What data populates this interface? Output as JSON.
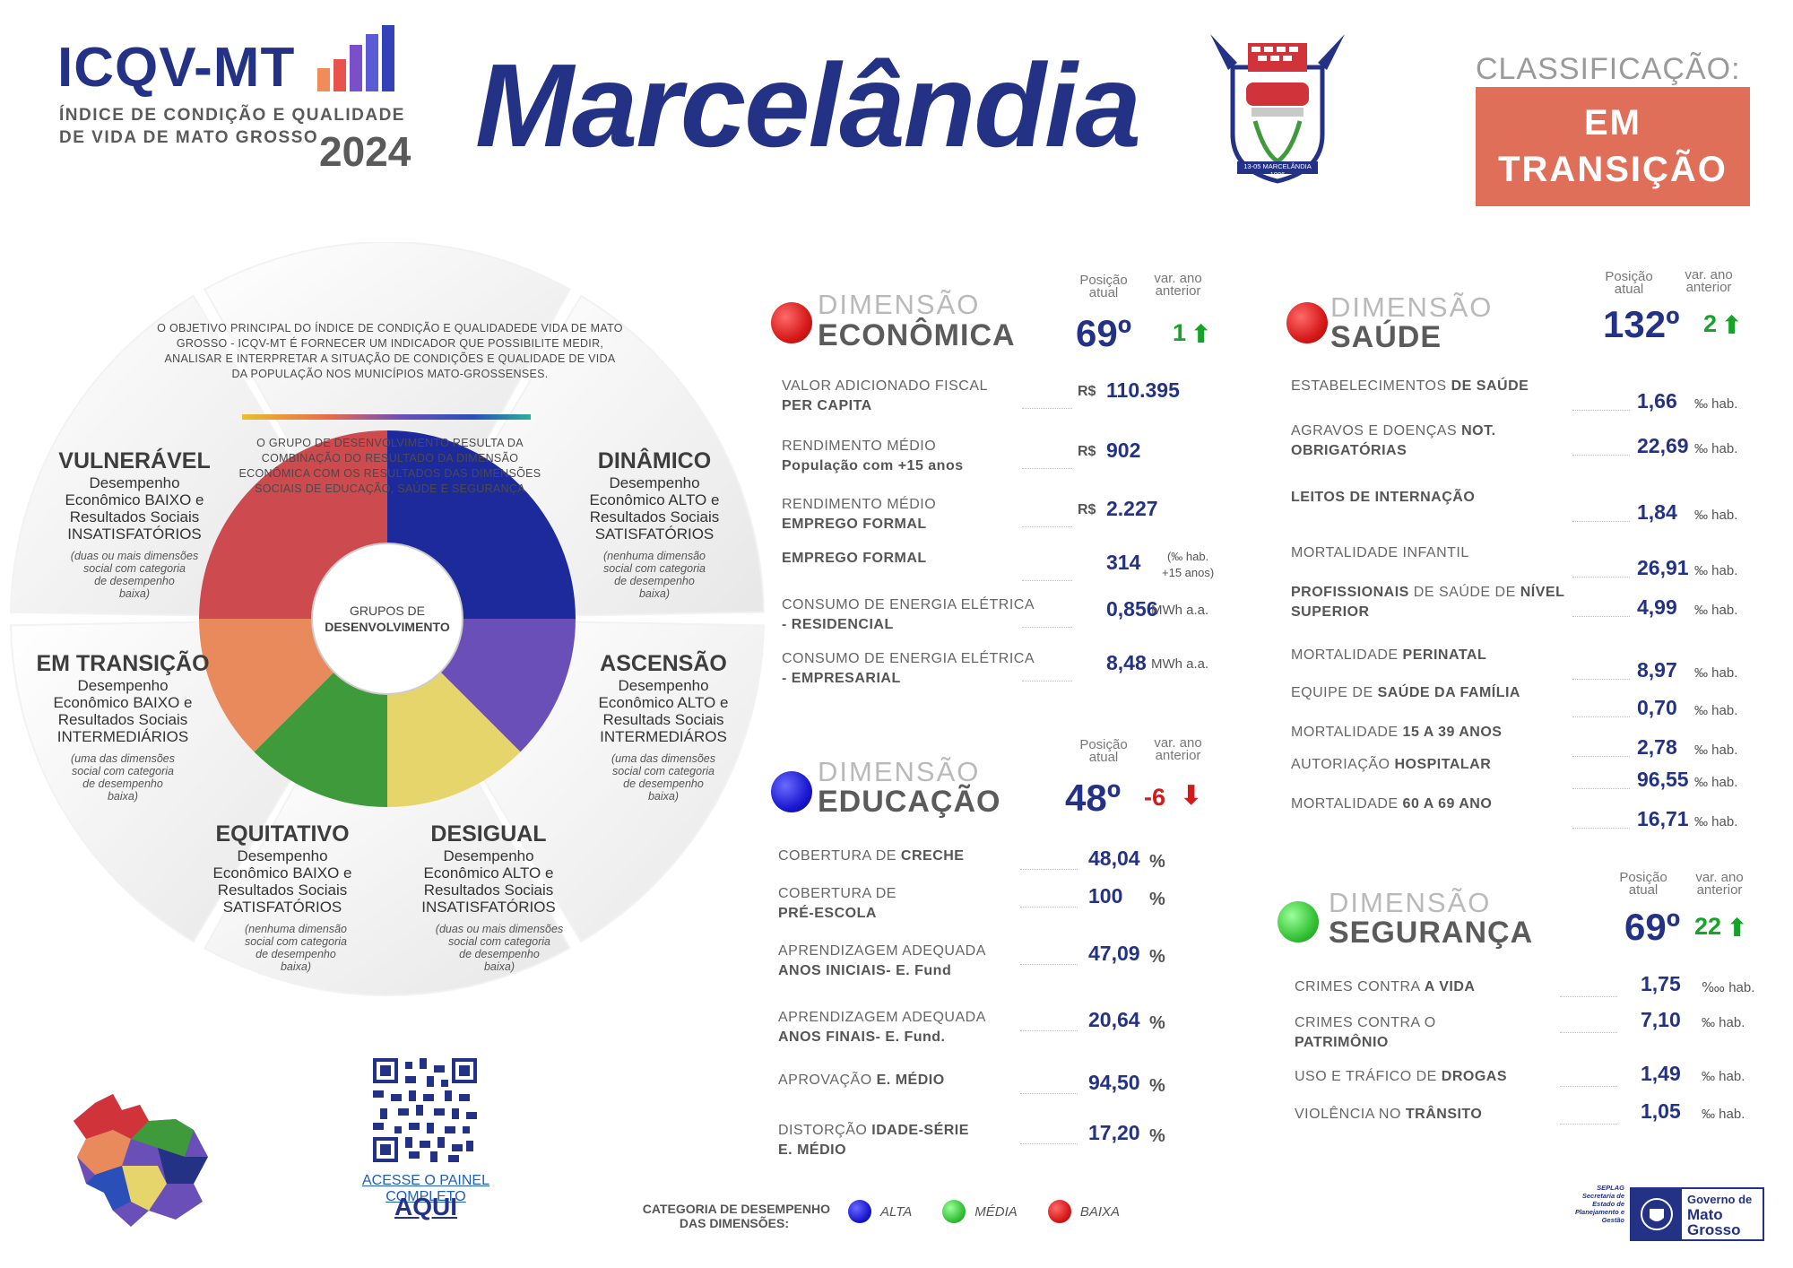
{
  "header": {
    "brand_title": "ICQV-MT",
    "brand_subtitle": "ÍNDICE DE CONDIÇÃO E QUALIDADE DE VIDA DE MATO GROSSO",
    "year": "2024",
    "city": "Marcelândia",
    "crest_caption": "13-05 MARCELÂNDIA 1986",
    "classification_label": "CLASSIFICAÇÃO:",
    "classification_value_line1": "EM",
    "classification_value_line2": "TRANSIÇÃO"
  },
  "wheel": {
    "objective_text": "O OBJETIVO PRINCIPAL DO ÍNDICE DE CONDIÇÃO E QUALIDADEDE VIDA DE MATO GROSSO - ICQV-MT É FORNECER UM INDICADOR QUE POSSIBILITE MEDIR, ANALISAR E INTERPRETAR A SITUAÇÃO DE CONDIÇÕES E QUALIDADE DE VIDA DA POPULAÇÃO NOS MUNICÍPIOS MATO-GROSSENSES.",
    "group_text": "O GRUPO DE DESENVOLVIMENTO RESULTA DA COMBINAÇÃO DO RESULTADO DA DIMENSÃO ECONÔMICA COM OS RESULTADOS DAS DIMENSÕES SOCIAIS DE EDUCAÇÃO, SAÚDE E SEGURANÇA",
    "center_line1": "GRUPOS DE",
    "center_line2": "DESENVOLVIMENTO",
    "colors": {
      "vulneravel": "#cd4a4e",
      "dinamico": "#1d2a9c",
      "ascensao": "#6b4fb8",
      "desigual": "#e6d56b",
      "equitativo": "#3f9a3c",
      "transicao": "#e98a5c"
    },
    "groups": {
      "vulneravel": {
        "title": "VULNERÁVEL",
        "desc": [
          "Desempenho",
          "Econômico BAIXO e",
          "Resultados Sociais",
          "INSATISFATÓRIOS"
        ],
        "note": [
          "(duas ou mais dimensões",
          "social com categoria",
          "de desempenho",
          "baixa)"
        ]
      },
      "dinamico": {
        "title": "DINÂMICO",
        "desc": [
          "Desempenho",
          "Econômico ALTO e",
          "Resultados Sociais",
          "SATISFATÓRIOS"
        ],
        "note": [
          "(nenhuma dimensão",
          "social com categoria",
          "de desempenho",
          "baixa)"
        ]
      },
      "transicao": {
        "title": "EM TRANSIÇÃO",
        "desc": [
          "Desempenho",
          "Econômico BAIXO e",
          "Resultados Sociais",
          "INTERMEDIÁRIOS"
        ],
        "note": [
          "(uma das dimensões",
          "social com categoria",
          "de desempenho",
          "baixa)"
        ]
      },
      "ascensao": {
        "title": "ASCENSÃO",
        "desc": [
          "Desempenho",
          "Econômico ALTO e",
          "Resultads Sociais",
          "INTERMEDIÁROS"
        ],
        "note": [
          "(uma das dimensões",
          "social com categoria",
          "de desempenho",
          "baixa)"
        ]
      },
      "equitativo": {
        "title": "EQUITATIVO",
        "desc": [
          "Desempenho",
          "Econômico BAIXO e",
          "Resultados Sociais",
          "SATISFATÓRIOS"
        ],
        "note": [
          "(nenhuma dimensão",
          "social com categoria",
          "de desempenho",
          "baixa)"
        ]
      },
      "desigual": {
        "title": "DESIGUAL",
        "desc": [
          "Desempenho",
          "Econômico ALTO e",
          "Resultados Sociais",
          "INSATISFATÓRIOS"
        ],
        "note": [
          "(duas ou mais dimensões",
          "social com categoria",
          "de desempenho",
          "baixa)"
        ]
      }
    }
  },
  "labels": {
    "dimensao": "DIMENSÃO",
    "posicao_l1": "Posição",
    "posicao_l2": "atual",
    "var_l1": "var. ano",
    "var_l2": "anterior"
  },
  "economica": {
    "name": "ECONÔMICA",
    "dot_color": "#e02020",
    "position": "69º",
    "variation": "1",
    "variation_dir": "up",
    "indicators": [
      {
        "l1": "VALOR ADICIONADO FISCAL",
        "l2b": "PER CAPITA",
        "prefix": "R$",
        "value": "110.395",
        "unit": ""
      },
      {
        "l1": "RENDIMENTO MÉDIO",
        "l2b": "População com +15 anos",
        "prefix": "R$",
        "value": "902",
        "unit": ""
      },
      {
        "l1": "RENDIMENTO MÉDIO",
        "l2b": "EMPREGO FORMAL",
        "prefix": "R$",
        "value": "2.227",
        "unit": ""
      },
      {
        "l1b": "EMPREGO FORMAL",
        "value": "314",
        "unit_l1": "(‰ hab.",
        "unit_l2": "+15 anos)"
      },
      {
        "l1": "CONSUMO DE ENERGIA ELÉTRICA",
        "l2": "- ",
        "l2b": "RESIDENCIAL",
        "value": "0,856",
        "unit": "MWh a.a."
      },
      {
        "l1": "CONSUMO DE ENERGIA ELÉTRICA",
        "l2": "- ",
        "l2b": "EMPRESARIAL",
        "value": "8,48",
        "unit": "MWh a.a."
      }
    ]
  },
  "saude": {
    "name": "SAÚDE",
    "dot_color": "#e02020",
    "position": "132º",
    "variation": "2",
    "variation_dir": "up",
    "indicators": [
      {
        "a": "ESTABELECIMENTOS ",
        "b": "DE SAÚDE",
        "value": "1,66",
        "unit": "‰ hab."
      },
      {
        "a": "AGRAVOS E DOENÇAS ",
        "b": "NOT.",
        "l2b": "OBRIGATÓRIAS",
        "value": "22,69",
        "unit": "‰ hab."
      },
      {
        "b": "LEITOS DE INTERNAÇÃO",
        "value": "1,84",
        "unit": "‰ hab."
      },
      {
        "a": "MORTALIDADE INFANTIL",
        "value": "26,91",
        "unit": "‰ hab."
      },
      {
        "b": "PROFISSIONAIS",
        "a2": " DE SAÚDE DE ",
        "b2": "NÍVEL",
        "l2b": "SUPERIOR",
        "value": "4,99",
        "unit": "‰ hab."
      },
      {
        "a": "MORTALIDADE ",
        "b": "PERINATAL",
        "value": "8,97",
        "unit": "‰ hab."
      },
      {
        "a": "EQUIPE DE ",
        "b": "SAÚDE DA FAMÍLIA",
        "value": "0,70",
        "unit": "‰ hab."
      },
      {
        "a": "MORTALIDADE ",
        "b": "15 A 39 ANOS",
        "value": "2,78",
        "unit": "‰ hab."
      },
      {
        "a": "AUTORIAÇÃO ",
        "b": "HOSPITALAR",
        "value": "96,55",
        "unit": "‰ hab."
      },
      {
        "a": "MORTALIDADE ",
        "b": "60 A 69 ANO",
        "value": "16,71",
        "unit": "‰ hab."
      }
    ]
  },
  "educacao": {
    "name": "EDUCAÇÃO",
    "dot_color": "#2020b8",
    "position": "48º",
    "variation": "-6",
    "variation_dir": "down",
    "indicators": [
      {
        "a": "COBERTURA DE ",
        "b": "CRECHE",
        "value": "48,04",
        "unit": "%"
      },
      {
        "a": "COBERTURA DE",
        "l2b": "PRÉ-ESCOLA",
        "value": "100",
        "unit": "%"
      },
      {
        "a": "APRENDIZAGEM ADEQUADA",
        "l2b": "ANOS INICIAIS- E. Fund",
        "value": "47,09",
        "unit": "%"
      },
      {
        "a": "APRENDIZAGEM ADEQUADA",
        "l2b": "ANOS FINAIS- E. Fund.",
        "value": "20,64",
        "unit": "%"
      },
      {
        "a": "APROVAÇÃO ",
        "b": "E. MÉDIO",
        "value": "94,50",
        "unit": "%"
      },
      {
        "a": "DISTORÇÃO ",
        "b": "IDADE-SÉRIE",
        "l2b": "E. MÉDIO",
        "value": "17,20",
        "unit": "%"
      }
    ]
  },
  "seguranca": {
    "name": "SEGURANÇA",
    "dot_color": "#3fc33f",
    "position": "69º",
    "variation": "22",
    "variation_dir": "up",
    "indicators": [
      {
        "a": "CRIMES CONTRA ",
        "b": "A VIDA",
        "value": "1,75",
        "unit": "‱ hab."
      },
      {
        "a": "CRIMES CONTRA O",
        "l2b": "PATRIMÔNIO",
        "value": "7,10",
        "unit": "‰ hab."
      },
      {
        "a": "USO E TRÁFICO DE ",
        "b": "DROGAS",
        "value": "1,49",
        "unit": "‰ hab."
      },
      {
        "a": "VIOLÊNCIA NO ",
        "b": "TRÂNSITO",
        "value": "1,05",
        "unit": "‰ hab."
      }
    ]
  },
  "footer": {
    "link_text": "ACESSE O PAINEL COMPLETO",
    "link_big": "AQUI",
    "legend_l1": "CATEGORIA DE DESEMPENHO",
    "legend_l2": "DAS DIMENSÕES:",
    "legend": [
      {
        "label": "ALTA",
        "color": "#2020b8"
      },
      {
        "label": "MÉDIA",
        "color": "#3fc33f"
      },
      {
        "label": "BAIXA",
        "color": "#e02020"
      }
    ],
    "seplag_l1": "SEPLAG",
    "seplag_l2": "Secretaria de Estado de Planejamento e Gestão",
    "gov_l1": "Governo de",
    "gov_l2": "Mato",
    "gov_l3": "Grosso"
  }
}
